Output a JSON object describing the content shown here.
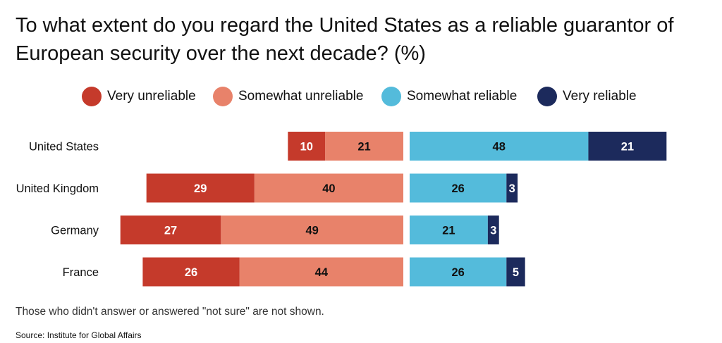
{
  "chart_data": {
    "type": "bar",
    "stacked": "diverging",
    "title": "To what extent do you regard the United States as a reliable guarantor of European security over the next decade? (%)",
    "categories": [
      "United States",
      "United Kingdom",
      "Germany",
      "France"
    ],
    "series": [
      {
        "name": "Very unreliable",
        "side": "left",
        "color": "#c53a2b",
        "label_color": "#ffffff",
        "values": [
          10,
          29,
          27,
          26
        ]
      },
      {
        "name": "Somewhat unreliable",
        "side": "left",
        "color": "#e8826a",
        "label_color": "#111111",
        "values": [
          21,
          40,
          49,
          44
        ]
      },
      {
        "name": "Somewhat reliable",
        "side": "right",
        "color": "#54bbdb",
        "label_color": "#111111",
        "values": [
          48,
          26,
          21,
          26
        ]
      },
      {
        "name": "Very reliable",
        "side": "right",
        "color": "#1c2a5c",
        "label_color": "#ffffff",
        "values": [
          21,
          3,
          3,
          5
        ]
      }
    ],
    "legend_position": "top",
    "grid": false,
    "footnote": "Those who didn't answer or answered \"not sure\" are not shown.",
    "source": "Source: Institute for Global Affairs"
  }
}
